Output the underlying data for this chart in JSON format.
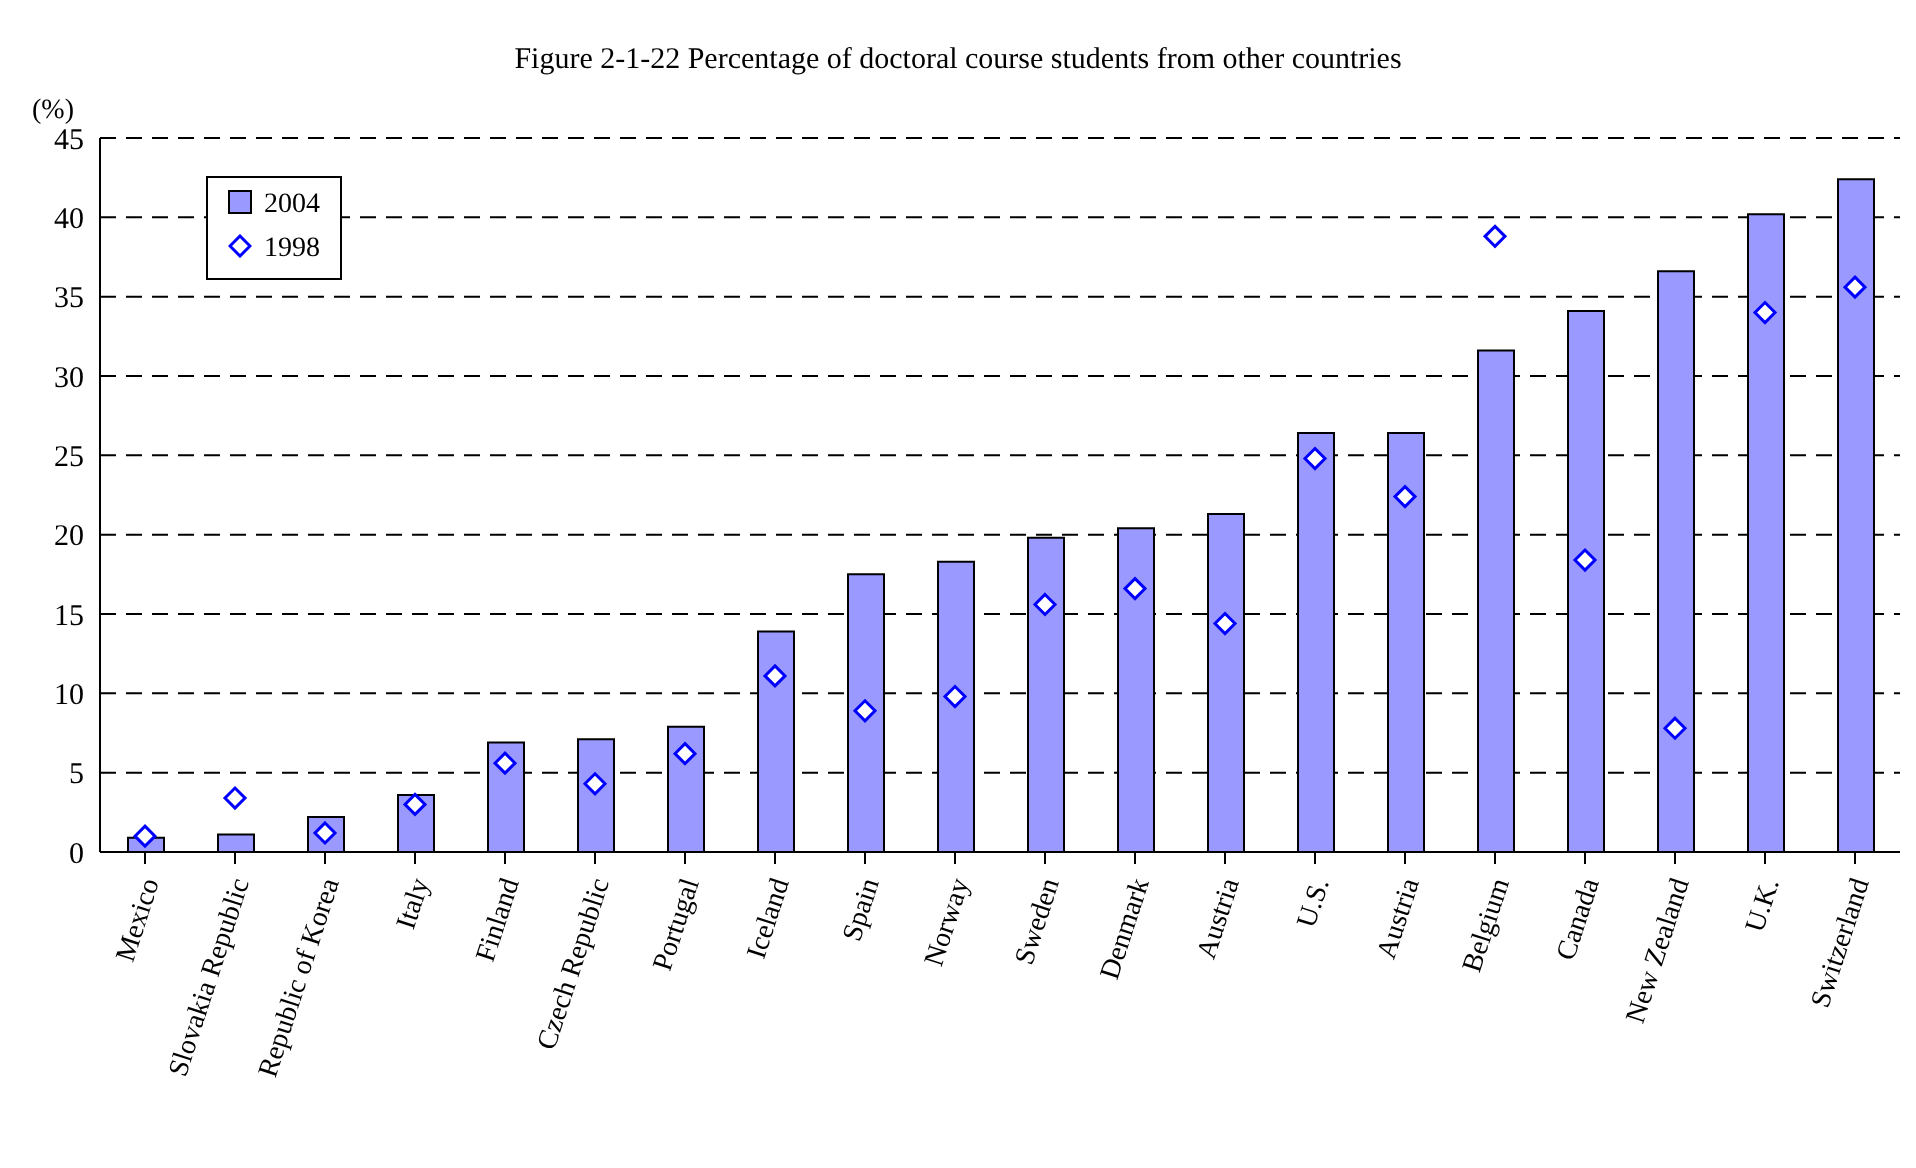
{
  "chart_data": {
    "type": "bar",
    "title": "Figure 2-1-22 Percentage of doctoral course students from other countries",
    "ylabel": "(%)",
    "categories": [
      "Mexico",
      "Slovakia Republic",
      "Republic of Korea",
      "Italy",
      "Finland",
      "Czech Republic",
      "Portugal",
      "Iceland",
      "Spain",
      "Norway",
      "Sweden",
      "Denmark",
      "Austria",
      "U.S.",
      "Austria",
      "Belgium",
      "Canada",
      "New Zealand",
      "U.K.",
      "Switzerland"
    ],
    "series": [
      {
        "name": "2004",
        "color": "#9999ff",
        "values": [
          0.9,
          1.1,
          2.2,
          3.6,
          6.9,
          7.1,
          7.9,
          13.9,
          17.5,
          18.3,
          19.8,
          20.4,
          21.3,
          26.4,
          26.4,
          31.6,
          34.1,
          36.6,
          40.2,
          42.4
        ]
      },
      {
        "name": "1998",
        "type": "scatter",
        "color": "#0000ff",
        "marker": "diamond",
        "values": [
          1.0,
          3.4,
          1.2,
          3.0,
          5.6,
          4.3,
          6.2,
          11.1,
          8.9,
          9.8,
          15.6,
          16.6,
          14.4,
          24.8,
          22.4,
          38.8,
          18.4,
          7.8,
          34.0,
          35.6
        ]
      }
    ],
    "ylim": [
      0,
      45
    ],
    "yticks": [
      0,
      5,
      10,
      15,
      20,
      25,
      30,
      35,
      40,
      45
    ],
    "grid": "y",
    "legend": "top left"
  }
}
